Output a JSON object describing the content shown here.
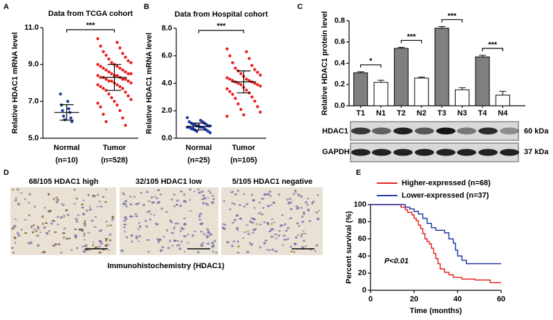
{
  "panel_labels": [
    "A",
    "B",
    "C",
    "D",
    "E"
  ],
  "blot": {
    "rows": [
      "HDAC1",
      "GAPDH"
    ],
    "sizes": [
      "60 kDa",
      "37 kDa"
    ]
  },
  "ihc": {
    "captions": [
      "68/105 HDAC1 high",
      "32/105 HDAC1 low",
      "5/105 HDAC1 negative"
    ],
    "caption": "Immunohistochemistry (HDAC1)"
  },
  "chart_data": [
    {
      "type": "strip",
      "title": "Data from TCGA cohort",
      "y_label": "Relative HDAC1 mRNA level",
      "categories": [
        "Normal",
        "Tumor"
      ],
      "n_labels": [
        "(n=10)",
        "(n=528)"
      ],
      "groups": [
        {
          "color": "#1f3aa6",
          "mean": 6.4,
          "sd": 0.42,
          "values": [
            7.4,
            7.0,
            6.8,
            6.6,
            6.5,
            6.4,
            6.2,
            6.1,
            6.0,
            5.9
          ]
        },
        {
          "color": "#e8201f",
          "mean": 8.3,
          "sd": 0.7,
          "values": [
            10.4,
            10.2,
            10.0,
            9.9,
            9.7,
            9.6,
            9.5,
            9.4,
            9.3,
            9.2,
            9.1,
            9.1,
            9.0,
            9.0,
            8.9,
            8.9,
            8.8,
            8.8,
            8.7,
            8.7,
            8.6,
            8.6,
            8.5,
            8.5,
            8.5,
            8.4,
            8.4,
            8.4,
            8.3,
            8.3,
            8.3,
            8.2,
            8.2,
            8.2,
            8.1,
            8.1,
            8.1,
            8.0,
            8.0,
            7.9,
            7.9,
            7.8,
            7.8,
            7.7,
            7.7,
            7.6,
            7.5,
            7.4,
            7.3,
            7.2,
            7.1,
            7.0,
            6.9,
            6.8,
            6.7,
            6.5,
            6.3,
            6.1,
            5.9,
            5.7
          ]
        }
      ],
      "significance": "***",
      "ylim": [
        5,
        11
      ],
      "yticks": [
        {
          "value": 5,
          "label": "5.0"
        },
        {
          "value": 7,
          "label": "7.0"
        },
        {
          "value": 9,
          "label": "9.0"
        },
        {
          "value": 11,
          "label": "11.0"
        }
      ]
    },
    {
      "type": "strip",
      "title": "Data from Hospital cohort",
      "y_label": "Relative HDAC1 mRNA level",
      "categories": [
        "Normal",
        "Tumor"
      ],
      "n_labels": [
        "(n=25)",
        "(n=105)"
      ],
      "groups": [
        {
          "color": "#1f3aa6",
          "mean": 0.85,
          "sd": 0.25,
          "values": [
            1.5,
            1.3,
            1.2,
            1.2,
            1.1,
            1.1,
            1.0,
            1.0,
            1.0,
            0.9,
            0.9,
            0.9,
            0.9,
            0.8,
            0.8,
            0.8,
            0.8,
            0.7,
            0.7,
            0.7,
            0.6,
            0.6,
            0.5,
            0.5,
            0.4
          ]
        },
        {
          "color": "#e8201f",
          "mean": 4.1,
          "sd": 0.8,
          "values": [
            6.5,
            6.3,
            6.0,
            5.8,
            5.5,
            5.3,
            5.1,
            5.0,
            4.9,
            4.8,
            4.7,
            4.6,
            4.5,
            4.4,
            4.3,
            4.3,
            4.2,
            4.2,
            4.1,
            4.1,
            4.0,
            4.0,
            3.9,
            3.9,
            3.8,
            3.7,
            3.6,
            3.5,
            3.4,
            3.3,
            3.2,
            3.0,
            2.9,
            2.7,
            2.5,
            2.3,
            2.1,
            1.9,
            1.7,
            1.6
          ]
        }
      ],
      "significance": "***",
      "ylim": [
        0,
        8
      ],
      "yticks": [
        {
          "value": 0,
          "label": "0.0"
        },
        {
          "value": 2,
          "label": "2.0"
        },
        {
          "value": 4,
          "label": "4.0"
        },
        {
          "value": 6,
          "label": "6.0"
        },
        {
          "value": 8,
          "label": "8.0"
        }
      ]
    },
    {
      "type": "bar",
      "y_label": "Relative HDAC1 protein level",
      "categories": [
        "T1",
        "N1",
        "T2",
        "N2",
        "T3",
        "N3",
        "T4",
        "N4"
      ],
      "values": [
        0.31,
        0.22,
        0.54,
        0.26,
        0.73,
        0.15,
        0.46,
        0.1
      ],
      "errors": [
        0.01,
        0.02,
        0.01,
        0.01,
        0.015,
        0.02,
        0.015,
        0.035
      ],
      "colors": [
        "#808080",
        "#ffffff",
        "#808080",
        "#ffffff",
        "#808080",
        "#ffffff",
        "#808080",
        "#ffffff"
      ],
      "significance": [
        "*",
        "***",
        "***",
        "***"
      ],
      "ylim": [
        0,
        0.8
      ],
      "yticks": [
        {
          "value": 0,
          "label": "0.0"
        },
        0.2,
        0.4,
        0.6,
        0.8
      ]
    },
    {
      "type": "line",
      "x_label": "Time (months)",
      "y_label": "Percent survival (%)",
      "annotation": "P<0.01",
      "series": [
        {
          "name": "Higher-expressed (n=68)",
          "color": "#e8201f",
          "x": [
            0,
            14,
            14,
            16,
            16,
            17,
            17,
            19,
            19,
            20,
            20,
            21,
            21,
            22,
            22,
            23,
            23,
            24,
            24,
            25,
            25,
            26,
            26,
            27,
            27,
            28,
            28,
            29,
            29,
            30,
            30,
            31,
            31,
            32,
            32,
            34,
            34,
            36,
            36,
            38,
            38,
            42,
            42,
            48,
            48,
            55,
            55,
            60
          ],
          "values": [
            100,
            100,
            97,
            97,
            94,
            94,
            91,
            91,
            88,
            88,
            84,
            84,
            81,
            81,
            76,
            76,
            72,
            72,
            66,
            66,
            60,
            60,
            57,
            57,
            54,
            54,
            49,
            49,
            43,
            43,
            37,
            37,
            31,
            31,
            25,
            25,
            21,
            21,
            18,
            18,
            15,
            15,
            13,
            13,
            12,
            12,
            9,
            9
          ]
        },
        {
          "name": "Lower-expressed (n=37)",
          "color": "#1f3aa6",
          "x": [
            0,
            16,
            16,
            18,
            18,
            20,
            20,
            22,
            22,
            24,
            24,
            26,
            26,
            28,
            28,
            30,
            30,
            34,
            34,
            36,
            36,
            38,
            38,
            39,
            39,
            40,
            40,
            42,
            42,
            44,
            44,
            60
          ],
          "values": [
            100,
            100,
            97,
            97,
            95,
            95,
            92,
            92,
            89,
            89,
            84,
            84,
            78,
            78,
            73,
            73,
            70,
            70,
            67,
            67,
            60,
            60,
            55,
            55,
            47,
            47,
            40,
            40,
            35,
            35,
            31,
            31
          ]
        }
      ],
      "xlim": [
        0,
        60
      ],
      "xticks": [
        0,
        20,
        40,
        60
      ],
      "ylim": [
        0,
        100
      ],
      "yticks": [
        0,
        20,
        40,
        60,
        80,
        100
      ]
    }
  ]
}
